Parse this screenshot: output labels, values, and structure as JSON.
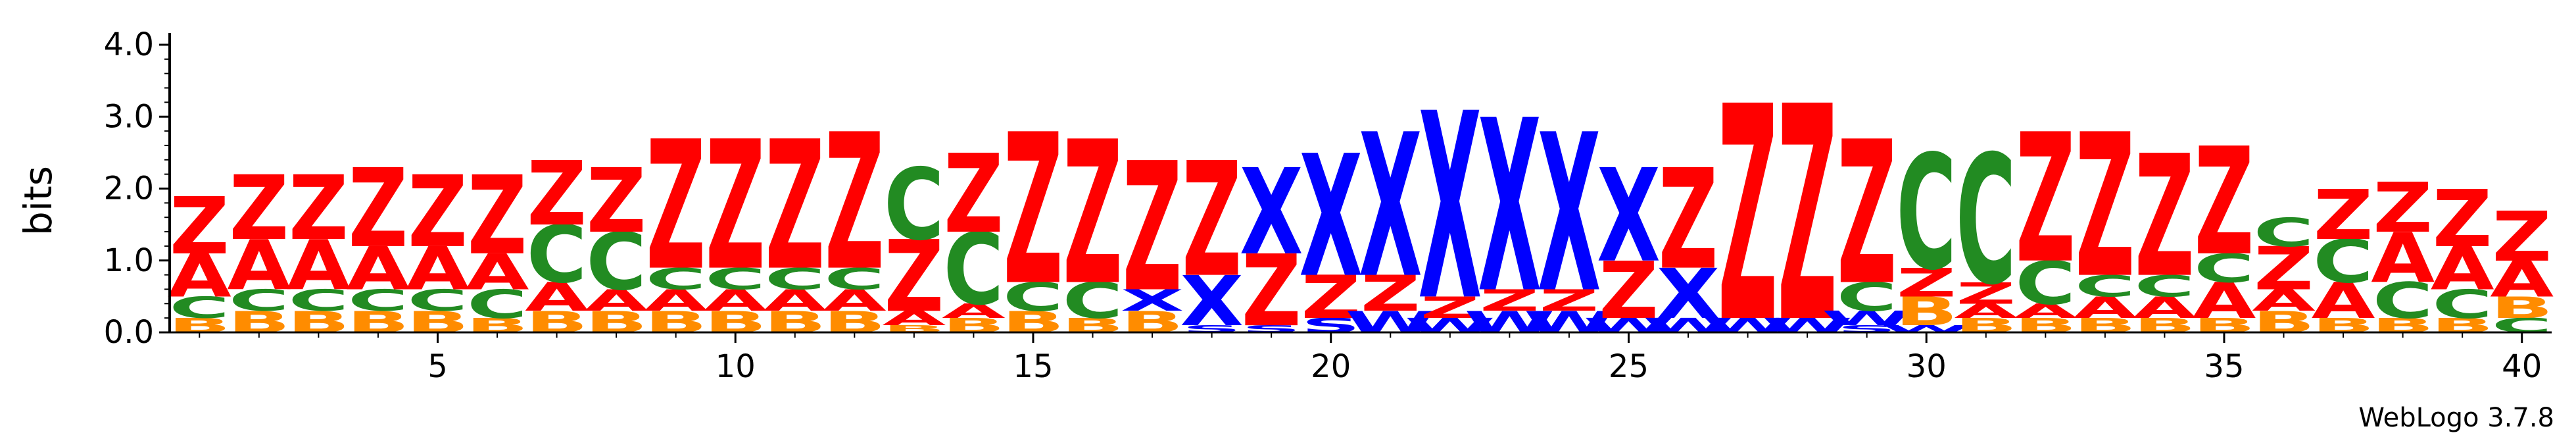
{
  "chart_data": {
    "type": "sequence-logo",
    "ylabel": "bits",
    "ylim": [
      0,
      4.0
    ],
    "y_ticks": [
      "0.0",
      "1.0",
      "2.0",
      "3.0",
      "4.0"
    ],
    "x_ticks": [
      5,
      10,
      15,
      20,
      25,
      30,
      35,
      40
    ],
    "positions": 40,
    "colors": {
      "Z": "#ff0000",
      "A": "#ff0000",
      "C": "#228b22",
      "B": "#ff8c00",
      "X": "#0000ff",
      "S": "#0000ff",
      "W": "#0000ff"
    },
    "columns": [
      [
        [
          "B",
          0.2
        ],
        [
          "C",
          0.3
        ],
        [
          "A",
          0.6
        ],
        [
          "Z",
          0.8
        ]
      ],
      [
        [
          "B",
          0.3
        ],
        [
          "C",
          0.3
        ],
        [
          "A",
          0.7
        ],
        [
          "Z",
          0.9
        ]
      ],
      [
        [
          "B",
          0.3
        ],
        [
          "C",
          0.3
        ],
        [
          "A",
          0.7
        ],
        [
          "Z",
          0.9
        ]
      ],
      [
        [
          "B",
          0.3
        ],
        [
          "C",
          0.3
        ],
        [
          "A",
          0.6
        ],
        [
          "Z",
          1.1
        ]
      ],
      [
        [
          "B",
          0.3
        ],
        [
          "C",
          0.3
        ],
        [
          "A",
          0.6
        ],
        [
          "Z",
          1.0
        ]
      ],
      [
        [
          "B",
          0.2
        ],
        [
          "C",
          0.4
        ],
        [
          "A",
          0.5
        ],
        [
          "Z",
          1.1
        ]
      ],
      [
        [
          "B",
          0.3
        ],
        [
          "A",
          0.4
        ],
        [
          "C",
          0.8
        ],
        [
          "Z",
          0.9
        ]
      ],
      [
        [
          "B",
          0.3
        ],
        [
          "A",
          0.3
        ],
        [
          "C",
          0.8
        ],
        [
          "Z",
          0.9
        ]
      ],
      [
        [
          "B",
          0.3
        ],
        [
          "A",
          0.3
        ],
        [
          "C",
          0.3
        ],
        [
          "Z",
          1.8
        ]
      ],
      [
        [
          "B",
          0.3
        ],
        [
          "A",
          0.3
        ],
        [
          "C",
          0.3
        ],
        [
          "Z",
          1.8
        ]
      ],
      [
        [
          "B",
          0.3
        ],
        [
          "A",
          0.3
        ],
        [
          "C",
          0.3
        ],
        [
          "Z",
          1.8
        ]
      ],
      [
        [
          "B",
          0.3
        ],
        [
          "A",
          0.3
        ],
        [
          "C",
          0.3
        ],
        [
          "Z",
          1.9
        ]
      ],
      [
        [
          "B",
          0.1
        ],
        [
          "A",
          0.2
        ],
        [
          "Z",
          1.0
        ],
        [
          "C",
          1.0
        ]
      ],
      [
        [
          "B",
          0.2
        ],
        [
          "A",
          0.2
        ],
        [
          "C",
          1.0
        ],
        [
          "Z",
          1.1
        ]
      ],
      [
        [
          "B",
          0.3
        ],
        [
          "C",
          0.4
        ],
        [
          "Z",
          2.1
        ]
      ],
      [
        [
          "B",
          0.2
        ],
        [
          "C",
          0.5
        ],
        [
          "Z",
          2.0
        ]
      ],
      [
        [
          "B",
          0.3
        ],
        [
          "X",
          0.3
        ],
        [
          "Z",
          1.8
        ]
      ],
      [
        [
          "S",
          0.1
        ],
        [
          "X",
          0.7
        ],
        [
          "Z",
          1.6
        ]
      ],
      [
        [
          "S",
          0.1
        ],
        [
          "Z",
          1.0
        ],
        [
          "X",
          1.2
        ]
      ],
      [
        [
          "S",
          0.2
        ],
        [
          "Z",
          0.6
        ],
        [
          "X",
          1.7
        ]
      ],
      [
        [
          "W",
          0.3
        ],
        [
          "Z",
          0.5
        ],
        [
          "X",
          2.0
        ]
      ],
      [
        [
          "W",
          0.2
        ],
        [
          "Z",
          0.3
        ],
        [
          "X",
          2.6
        ]
      ],
      [
        [
          "W",
          0.3
        ],
        [
          "Z",
          0.3
        ],
        [
          "X",
          2.4
        ]
      ],
      [
        [
          "W",
          0.3
        ],
        [
          "Z",
          0.3
        ],
        [
          "X",
          2.2
        ]
      ],
      [
        [
          "W",
          0.2
        ],
        [
          "Z",
          0.8
        ],
        [
          "X",
          1.3
        ]
      ],
      [
        [
          "W",
          0.2
        ],
        [
          "X",
          0.7
        ],
        [
          "Z",
          1.4
        ]
      ],
      [
        [
          "W",
          0.2
        ],
        [
          "Z",
          3.0
        ]
      ],
      [
        [
          "W",
          0.2
        ],
        [
          "Z",
          3.0
        ]
      ],
      [
        [
          "S",
          0.1
        ],
        [
          "W",
          0.2
        ],
        [
          "C",
          0.4
        ],
        [
          "Z",
          2.0
        ]
      ],
      [
        [
          "W",
          0.1
        ],
        [
          "B",
          0.4
        ],
        [
          "Z",
          0.4
        ],
        [
          "C",
          1.6
        ]
      ],
      [
        [
          "B",
          0.2
        ],
        [
          "A",
          0.2
        ],
        [
          "Z",
          0.3
        ],
        [
          "C",
          1.8
        ]
      ],
      [
        [
          "B",
          0.2
        ],
        [
          "A",
          0.2
        ],
        [
          "C",
          0.6
        ],
        [
          "Z",
          1.8
        ]
      ],
      [
        [
          "B",
          0.2
        ],
        [
          "A",
          0.3
        ],
        [
          "C",
          0.3
        ],
        [
          "Z",
          2.0
        ]
      ],
      [
        [
          "B",
          0.2
        ],
        [
          "A",
          0.3
        ],
        [
          "C",
          0.3
        ],
        [
          "Z",
          1.7
        ]
      ],
      [
        [
          "B",
          0.2
        ],
        [
          "A",
          0.5
        ],
        [
          "C",
          0.4
        ],
        [
          "Z",
          1.5
        ]
      ],
      [
        [
          "B",
          0.3
        ],
        [
          "A",
          0.3
        ],
        [
          "Z",
          0.6
        ],
        [
          "C",
          0.4
        ]
      ],
      [
        [
          "B",
          0.2
        ],
        [
          "A",
          0.5
        ],
        [
          "C",
          0.6
        ],
        [
          "Z",
          0.7
        ]
      ],
      [
        [
          "B",
          0.2
        ],
        [
          "C",
          0.5
        ],
        [
          "A",
          0.7
        ],
        [
          "Z",
          0.7
        ]
      ],
      [
        [
          "B",
          0.2
        ],
        [
          "C",
          0.4
        ],
        [
          "A",
          0.6
        ],
        [
          "Z",
          0.8
        ]
      ],
      [
        [
          "C",
          0.2
        ],
        [
          "B",
          0.3
        ],
        [
          "A",
          0.5
        ],
        [
          "Z",
          0.7
        ]
      ]
    ]
  },
  "footer": {
    "brand": "WebLogo 3.7.8"
  }
}
